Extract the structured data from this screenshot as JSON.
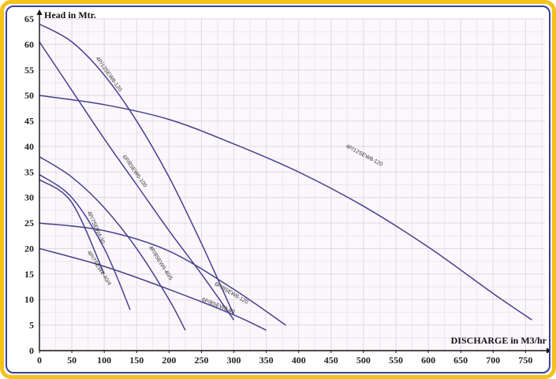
{
  "chart_data": {
    "type": "line",
    "ylabel": "Head in Mtr.",
    "xlabel": "DISCHARGE in M3/hr",
    "xlim": [
      0,
      780
    ],
    "ylim": [
      0,
      65
    ],
    "xticks": [
      0,
      50,
      100,
      150,
      200,
      250,
      300,
      350,
      400,
      450,
      500,
      550,
      600,
      650,
      700,
      750
    ],
    "yticks": [
      0,
      5,
      10,
      15,
      20,
      25,
      30,
      35,
      40,
      45,
      50,
      55,
      60,
      65
    ],
    "grid": true,
    "line_color": "#45418f",
    "series": [
      {
        "name": "4P/12SEW8-120",
        "label_at": [
          500,
          38
        ],
        "x": [
          0,
          100,
          200,
          300,
          400,
          500,
          600,
          700,
          760
        ],
        "y": [
          50,
          48.2,
          45.3,
          40.5,
          35,
          28.3,
          20.3,
          11.2,
          6
        ]
      },
      {
        "name": "4P/12SEW8-120",
        "label_at": [
          105,
          54
        ],
        "x": [
          0,
          50,
          100,
          150,
          200,
          250,
          300
        ],
        "y": [
          64,
          60.5,
          54,
          45,
          34,
          21,
          7
        ]
      },
      {
        "name": "6P/8SEW6-100",
        "label_at": [
          145,
          35
        ],
        "x": [
          0,
          50,
          100,
          150,
          200,
          250,
          300
        ],
        "y": [
          60.5,
          51,
          41.5,
          32.5,
          23.5,
          15,
          6
        ]
      },
      {
        "name": "4P/8SEW4-40/5",
        "label_at": [
          185,
          17
        ],
        "x": [
          0,
          50,
          100,
          150,
          200,
          225
        ],
        "y": [
          38,
          34,
          28,
          20,
          10,
          4
        ]
      },
      {
        "name": "4P/7SEW4-40/4",
        "label_at": [
          90,
          16
        ],
        "x": [
          0,
          50,
          100,
          140
        ],
        "y": [
          34.5,
          30,
          20,
          8
        ]
      },
      {
        "name": "4P/7SEW4-30",
        "label_at": [
          85,
          24
        ],
        "x": [
          0,
          50,
          100
        ],
        "y": [
          33.5,
          29,
          15
        ]
      },
      {
        "name": "6P/8SEW8-120",
        "label_at": [
          295,
          11
        ],
        "x": [
          0,
          100,
          200,
          300,
          380
        ],
        "y": [
          25,
          23.5,
          19.5,
          12,
          5
        ]
      },
      {
        "name": "6P/8SEW8-80",
        "label_at": [
          275,
          8.5
        ],
        "x": [
          0,
          100,
          200,
          300,
          350
        ],
        "y": [
          20,
          16.5,
          12,
          7,
          4
        ]
      }
    ]
  }
}
